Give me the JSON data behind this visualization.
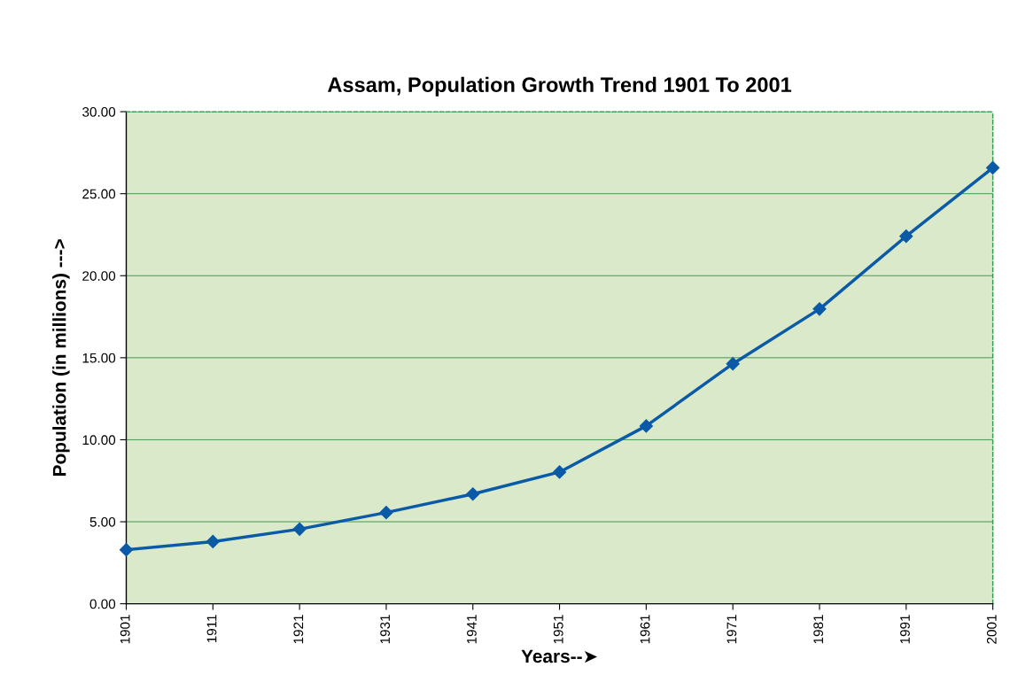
{
  "chart_data": {
    "type": "line",
    "title": "Assam, Population Growth Trend 1901 To 2001",
    "xlabel": "Years--➤",
    "ylabel": "Population (in millions) --->",
    "categories": [
      "1901",
      "1911",
      "1921",
      "1931",
      "1941",
      "1951",
      "1961",
      "1971",
      "1981",
      "1991",
      "2001"
    ],
    "series": [
      {
        "color": "#0a5aa8",
        "values": [
          3.29,
          3.79,
          4.55,
          5.56,
          6.69,
          8.03,
          10.84,
          14.63,
          17.97,
          22.41,
          26.58
        ]
      }
    ],
    "ylim": [
      0,
      30
    ],
    "yticks": [
      {
        "value": 0,
        "label": "0.00"
      },
      {
        "value": 5,
        "label": "5.00"
      },
      {
        "value": 10,
        "label": "10.00"
      },
      {
        "value": 15,
        "label": "15.00"
      },
      {
        "value": 20,
        "label": "20.00"
      },
      {
        "value": 25,
        "label": "25.00"
      },
      {
        "value": 30,
        "label": "30.00"
      }
    ],
    "grid": "y",
    "marker": "diamond",
    "line_style": "solid",
    "legend": false
  }
}
